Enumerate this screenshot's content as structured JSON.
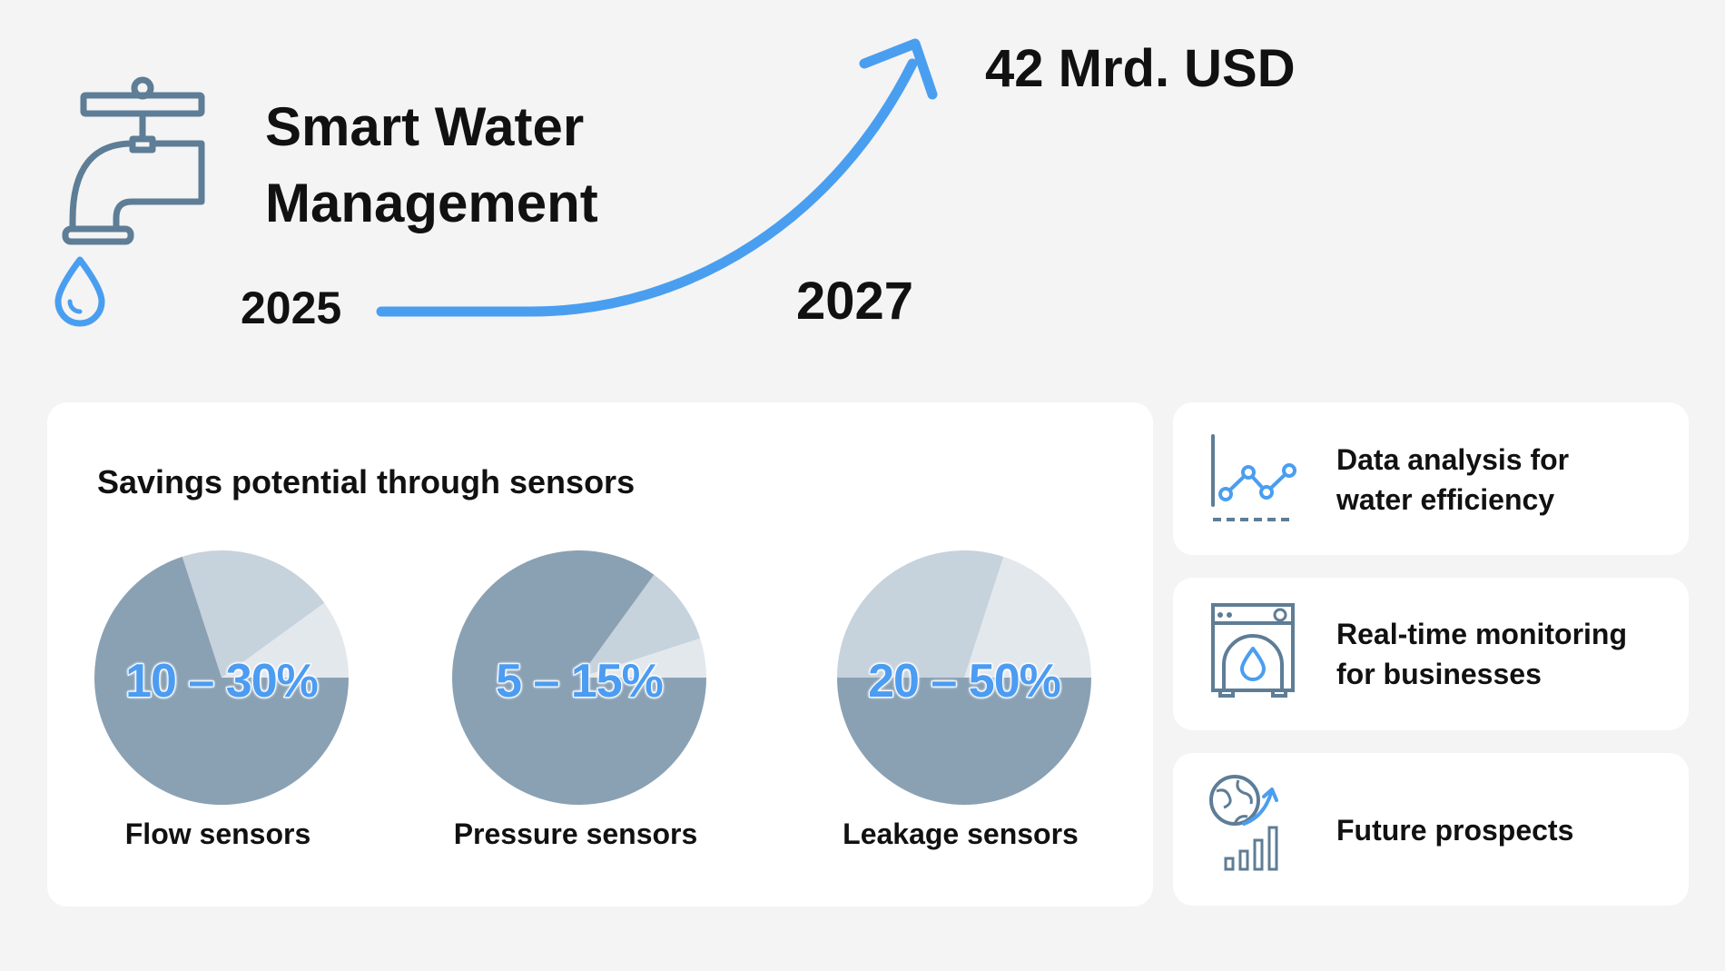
{
  "header": {
    "title_line1": "Smart Water",
    "title_line2": "Management",
    "year_start": "2025",
    "year_end": "2027",
    "market_value": "42 Mrd. USD"
  },
  "savings": {
    "title": "Savings potential through sensors"
  },
  "chart_data": {
    "type": "pie",
    "title": "Savings potential through sensors",
    "pies": [
      {
        "label": "Flow sensors",
        "range_label": "10 – 30%",
        "min_percent": 10,
        "max_percent": 30,
        "slices": [
          {
            "role": "base",
            "value": 70,
            "color": "#8aa1b4"
          },
          {
            "role": "range",
            "value": 20,
            "color": "#c6d2dc"
          },
          {
            "role": "min",
            "value": 10,
            "color": "#e3e8ed"
          }
        ]
      },
      {
        "label": "Pressure sensors",
        "range_label": "5 – 15%",
        "min_percent": 5,
        "max_percent": 15,
        "slices": [
          {
            "role": "base",
            "value": 85,
            "color": "#8aa1b4"
          },
          {
            "role": "range",
            "value": 10,
            "color": "#c6d2dc"
          },
          {
            "role": "min",
            "value": 5,
            "color": "#e3e8ed"
          }
        ]
      },
      {
        "label": "Leakage sensors",
        "range_label": "20 – 50%",
        "min_percent": 20,
        "max_percent": 50,
        "slices": [
          {
            "role": "base",
            "value": 50,
            "color": "#8aa1b4"
          },
          {
            "role": "range",
            "value": 30,
            "color": "#c6d2dc"
          },
          {
            "role": "min",
            "value": 20,
            "color": "#e3e8ed"
          }
        ]
      }
    ]
  },
  "features": [
    {
      "line1": "Data analysis for",
      "line2": "water efficiency",
      "icon": "line-chart-icon"
    },
    {
      "line1": "Real-time monitoring",
      "line2": "for businesses",
      "icon": "water-machine-icon"
    },
    {
      "line1": "Future prospects",
      "line2": "",
      "icon": "globe-growth-icon"
    }
  ],
  "colors": {
    "accent_blue": "#4a9ef0",
    "icon_slate": "#5e7d96",
    "pie_dark": "#8aa1b4",
    "pie_mid": "#c6d2dc",
    "pie_light": "#e3e8ed"
  }
}
